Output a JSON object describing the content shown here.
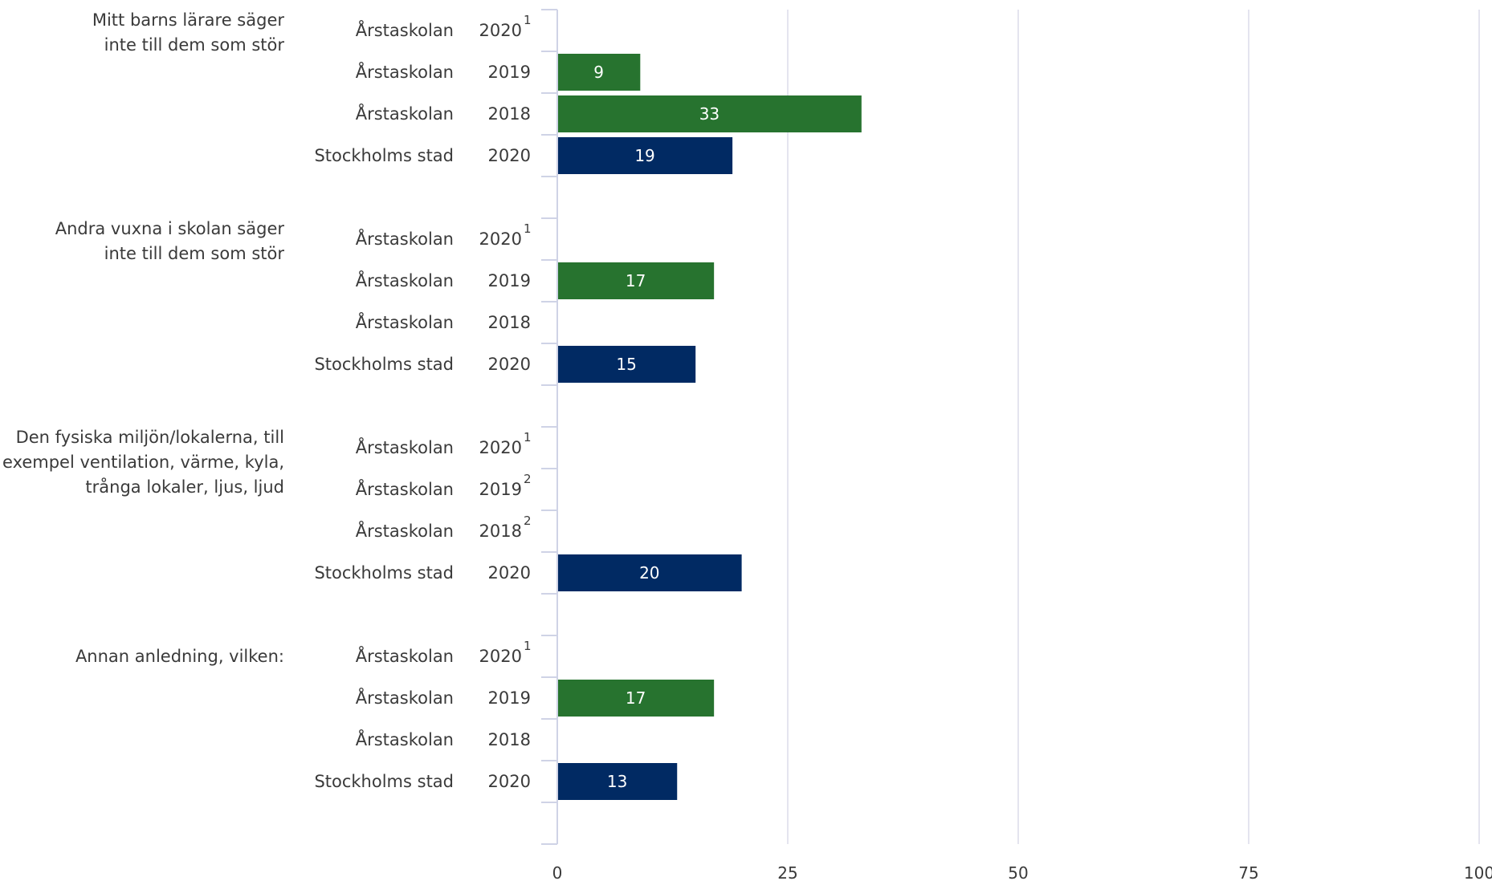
{
  "chart_data": {
    "type": "bar",
    "orientation": "horizontal",
    "title": "",
    "xlabel": "",
    "ylabel": "",
    "xlim": [
      0,
      100
    ],
    "x_ticks": [
      "0",
      "25",
      "50",
      "75",
      "100"
    ],
    "grid": true,
    "legend": "none",
    "colors": {
      "Årstaskolan": "#27732f",
      "Stockholms stad": "#012a63"
    },
    "groups": [
      {
        "label": "Mitt barns lärare säger inte till dem som stör",
        "label_lines": [
          "Mitt barns lärare säger",
          "inte till dem som stör"
        ],
        "rows": [
          {
            "unit": "Årstaskolan",
            "year": "2020",
            "note": "1",
            "value": null
          },
          {
            "unit": "Årstaskolan",
            "year": "2019",
            "note": "",
            "value": 9,
            "value_label": "9"
          },
          {
            "unit": "Årstaskolan",
            "year": "2018",
            "note": "",
            "value": 33,
            "value_label": "33"
          },
          {
            "unit": "Stockholms stad",
            "year": "2020",
            "note": "",
            "value": 19,
            "value_label": "19"
          }
        ]
      },
      {
        "label": "Andra vuxna i skolan säger inte till dem som stör",
        "label_lines": [
          "Andra vuxna i skolan säger",
          "inte till dem som stör"
        ],
        "rows": [
          {
            "unit": "Årstaskolan",
            "year": "2020",
            "note": "1",
            "value": null
          },
          {
            "unit": "Årstaskolan",
            "year": "2019",
            "note": "",
            "value": 17,
            "value_label": "17"
          },
          {
            "unit": "Årstaskolan",
            "year": "2018",
            "note": "",
            "value": null
          },
          {
            "unit": "Stockholms stad",
            "year": "2020",
            "note": "",
            "value": 15,
            "value_label": "15"
          }
        ]
      },
      {
        "label": "Den fysiska miljön/lokalerna, till exempel ventilation, värme, kyla, trånga lokaler, ljus, ljud",
        "label_lines": [
          "Den fysiska miljön/lokalerna, till",
          "exempel ventilation, värme, kyla,",
          "trånga lokaler, ljus, ljud"
        ],
        "rows": [
          {
            "unit": "Årstaskolan",
            "year": "2020",
            "note": "1",
            "value": null
          },
          {
            "unit": "Årstaskolan",
            "year": "2019",
            "note": "2",
            "value": null
          },
          {
            "unit": "Årstaskolan",
            "year": "2018",
            "note": "2",
            "value": null
          },
          {
            "unit": "Stockholms stad",
            "year": "2020",
            "note": "",
            "value": 20,
            "value_label": "20"
          }
        ]
      },
      {
        "label": "Annan anledning, vilken:",
        "label_lines": [
          "Annan anledning, vilken:"
        ],
        "rows": [
          {
            "unit": "Årstaskolan",
            "year": "2020",
            "note": "1",
            "value": null
          },
          {
            "unit": "Årstaskolan",
            "year": "2019",
            "note": "",
            "value": 17,
            "value_label": "17"
          },
          {
            "unit": "Årstaskolan",
            "year": "2018",
            "note": "",
            "value": null
          },
          {
            "unit": "Stockholms stad",
            "year": "2020",
            "note": "",
            "value": 13,
            "value_label": "13"
          }
        ]
      }
    ]
  }
}
